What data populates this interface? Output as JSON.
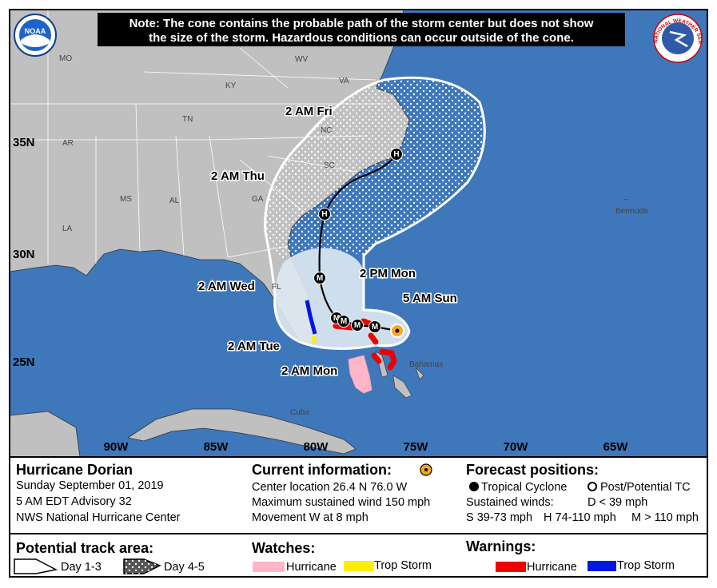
{
  "note": {
    "line1": "Note: The cone contains the probable path of the storm center but does not show",
    "line2": "the size of the storm. Hazardous conditions can occur outside of the cone."
  },
  "logos": {
    "noaa": "NOAA",
    "nws": "NATIONAL WEATHER SERVICE"
  },
  "map": {
    "states": [
      "MO",
      "WV",
      "VA",
      "KY",
      "TN",
      "NC",
      "AR",
      "SC",
      "MS",
      "AL",
      "GA",
      "LA",
      "FL"
    ],
    "places": [
      "Bermuda",
      "Bahamas",
      "Cuba"
    ],
    "latitudes": [
      "35N",
      "30N",
      "25N"
    ],
    "longitudes": [
      "90W",
      "85W",
      "80W",
      "75W",
      "70W",
      "65W"
    ],
    "track_labels": [
      "2 AM Fri",
      "2 AM Thu",
      "2 AM Wed",
      "2 PM Mon",
      "5 AM Sun",
      "2 AM Tue",
      "2 AM Mon"
    ],
    "markers": [
      "H",
      "H",
      "M",
      "M",
      "M",
      "M",
      "M"
    ]
  },
  "legend": {
    "storm": {
      "name": "Hurricane Dorian",
      "date": "Sunday September 01, 2019",
      "advisory": "5 AM EDT Advisory 32",
      "source": "NWS National Hurricane Center"
    },
    "current": {
      "title": "Current information:",
      "location": "Center location 26.4 N 76.0 W",
      "wind": "Maximum sustained wind 150 mph",
      "movement": "Movement W at 8 mph"
    },
    "forecast": {
      "title": "Forecast positions:",
      "tropical": "Tropical Cyclone",
      "post": "Post/Potential TC",
      "winds": "Sustained winds:",
      "d": "D < 39 mph",
      "s": "S 39-73 mph",
      "h": "H 74-110 mph",
      "m": "M > 110 mph"
    },
    "track_area": {
      "title": "Potential track area:",
      "day13": "Day 1-3",
      "day45": "Day 4-5"
    },
    "watches": {
      "title": "Watches:",
      "hurricane": "Hurricane",
      "storm": "Trop Storm"
    },
    "warnings": {
      "title": "Warnings:",
      "hurricane": "Hurricane",
      "storm": "Trop Storm"
    }
  }
}
